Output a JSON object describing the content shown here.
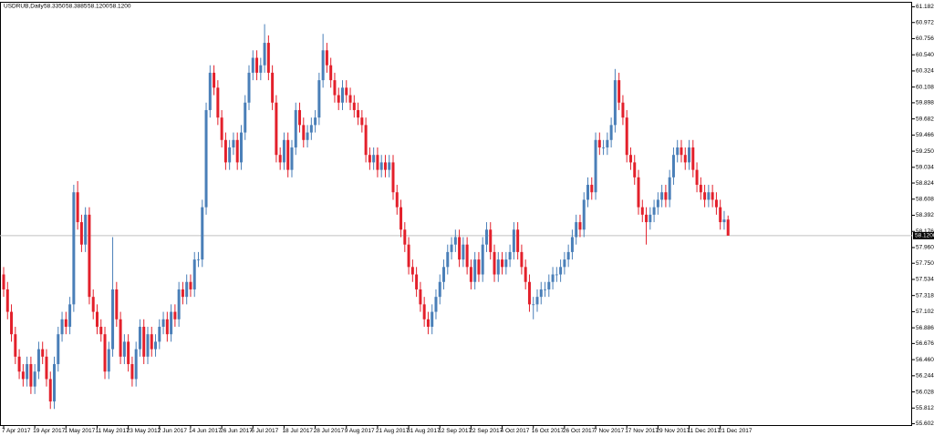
{
  "chart_data": {
    "type": "candlestick",
    "title": "USDRUB,Daily",
    "header_prices": [
      "58.3350",
      "58.3885",
      "58.1200",
      "58.1200"
    ],
    "up_color": "#4a7fb8",
    "down_color": "#e3202b",
    "current_price": {
      "value": 58.12,
      "label": "58.1200"
    },
    "ylim": [
      55.578,
      61.243
    ],
    "yticks": [
      {
        "value": 61.182,
        "label": "61.1820"
      },
      {
        "value": 60.972,
        "label": "60.9720"
      },
      {
        "value": 60.756,
        "label": "60.7560"
      },
      {
        "value": 60.54,
        "label": "60.5400"
      },
      {
        "value": 60.324,
        "label": "60.3240"
      },
      {
        "value": 60.108,
        "label": "60.1080"
      },
      {
        "value": 59.898,
        "label": "59.8980"
      },
      {
        "value": 59.682,
        "label": "59.6820"
      },
      {
        "value": 59.466,
        "label": "59.4660"
      },
      {
        "value": 59.25,
        "label": "59.2500"
      },
      {
        "value": 59.034,
        "label": "59.0340"
      },
      {
        "value": 58.824,
        "label": "58.8240"
      },
      {
        "value": 58.608,
        "label": "58.6080"
      },
      {
        "value": 58.392,
        "label": "58.3920"
      },
      {
        "value": 58.176,
        "label": "58.1760"
      },
      {
        "value": 57.96,
        "label": "57.9600"
      },
      {
        "value": 57.75,
        "label": "57.7500"
      },
      {
        "value": 57.534,
        "label": "57.5340"
      },
      {
        "value": 57.318,
        "label": "57.3180"
      },
      {
        "value": 57.102,
        "label": "57.1020"
      },
      {
        "value": 56.886,
        "label": "56.8860"
      },
      {
        "value": 56.676,
        "label": "56.6760"
      },
      {
        "value": 56.46,
        "label": "56.4600"
      },
      {
        "value": 56.244,
        "label": "56.2440"
      },
      {
        "value": 56.028,
        "label": "56.0280"
      },
      {
        "value": 55.812,
        "label": "55.8120"
      },
      {
        "value": 55.602,
        "label": "55.6020"
      }
    ],
    "categories": [
      "7 Apr 2017",
      null,
      null,
      null,
      null,
      null,
      null,
      null,
      "19 Apr 2017",
      null,
      null,
      null,
      null,
      null,
      null,
      null,
      "1 May 2017",
      null,
      null,
      null,
      null,
      null,
      null,
      null,
      "11 May 2017",
      null,
      null,
      null,
      null,
      null,
      null,
      null,
      "23 May 2017",
      null,
      null,
      null,
      null,
      null,
      null,
      null,
      "2 Jun 2017",
      null,
      null,
      null,
      null,
      null,
      null,
      null,
      "14 Jun 2017",
      null,
      null,
      null,
      null,
      null,
      null,
      null,
      "26 Jun 2017",
      null,
      null,
      null,
      null,
      null,
      null,
      null,
      "6 Jul 2017",
      null,
      null,
      null,
      null,
      null,
      null,
      null,
      "18 Jul 2017",
      null,
      null,
      null,
      null,
      null,
      null,
      null,
      "28 Jul 2017",
      null,
      null,
      null,
      null,
      null,
      null,
      null,
      "9 Aug 2017",
      null,
      null,
      null,
      null,
      null,
      null,
      null,
      "21 Aug 2017",
      null,
      null,
      null,
      null,
      null,
      null,
      null,
      "31 Aug 2017",
      null,
      null,
      null,
      null,
      null,
      null,
      null,
      "12 Sep 2017",
      null,
      null,
      null,
      null,
      null,
      null,
      null,
      "22 Sep 2017",
      null,
      null,
      null,
      null,
      null,
      null,
      null,
      "4 Oct 2017",
      null,
      null,
      null,
      null,
      null,
      null,
      null,
      "16 Oct 2017",
      null,
      null,
      null,
      null,
      null,
      null,
      null,
      "26 Oct 2017",
      null,
      null,
      null,
      null,
      null,
      null,
      null,
      "7 Nov 2017",
      null,
      null,
      null,
      null,
      null,
      null,
      null,
      "17 Nov 2017",
      null,
      null,
      null,
      null,
      null,
      null,
      null,
      "29 Nov 2017",
      null,
      null,
      null,
      null,
      null,
      null,
      null,
      "11 Dec 2017",
      null,
      null,
      null,
      null,
      null,
      null,
      null,
      "21 Dec 2017",
      null,
      null
    ],
    "ohlc": [
      [
        57.6,
        57.7,
        57.3,
        57.4
      ],
      [
        57.4,
        57.5,
        57.0,
        57.1
      ],
      [
        57.1,
        57.2,
        56.7,
        56.8
      ],
      [
        56.8,
        56.9,
        56.4,
        56.5
      ],
      [
        56.5,
        56.6,
        56.2,
        56.3
      ],
      [
        56.3,
        56.4,
        56.1,
        56.2
      ],
      [
        56.2,
        56.5,
        56.1,
        56.4
      ],
      [
        56.4,
        56.5,
        56.0,
        56.1
      ],
      [
        56.1,
        56.4,
        56.0,
        56.3
      ],
      [
        56.3,
        56.7,
        56.2,
        56.6
      ],
      [
        56.6,
        56.7,
        56.4,
        56.5
      ],
      [
        56.5,
        56.6,
        56.1,
        56.2
      ],
      [
        56.2,
        56.3,
        55.8,
        55.9
      ],
      [
        55.9,
        56.5,
        55.8,
        56.4
      ],
      [
        56.4,
        56.9,
        56.3,
        56.8
      ],
      [
        56.8,
        57.1,
        56.7,
        57.0
      ],
      [
        57.0,
        57.1,
        56.8,
        56.9
      ],
      [
        56.9,
        57.3,
        56.8,
        57.2
      ],
      [
        57.2,
        58.8,
        57.1,
        58.7
      ],
      [
        58.7,
        58.85,
        58.2,
        58.3
      ],
      [
        58.3,
        58.4,
        57.9,
        58.0
      ],
      [
        58.0,
        58.5,
        57.9,
        58.4
      ],
      [
        58.4,
        58.5,
        57.2,
        57.3
      ],
      [
        57.3,
        57.4,
        57.0,
        57.1
      ],
      [
        57.1,
        57.2,
        56.8,
        56.9
      ],
      [
        56.9,
        57.0,
        56.7,
        56.8
      ],
      [
        56.8,
        56.9,
        56.2,
        56.3
      ],
      [
        56.3,
        56.7,
        56.2,
        56.6
      ],
      [
        56.6,
        58.1,
        56.5,
        57.4
      ],
      [
        57.4,
        57.5,
        56.9,
        57.0
      ],
      [
        57.0,
        57.1,
        56.4,
        56.5
      ],
      [
        56.5,
        56.8,
        56.4,
        56.7
      ],
      [
        56.7,
        56.8,
        56.3,
        56.4
      ],
      [
        56.4,
        56.5,
        56.1,
        56.2
      ],
      [
        56.2,
        56.7,
        56.1,
        56.6
      ],
      [
        56.6,
        57.0,
        56.5,
        56.9
      ],
      [
        56.9,
        57.0,
        56.4,
        56.5
      ],
      [
        56.5,
        56.9,
        56.4,
        56.8
      ],
      [
        56.8,
        56.9,
        56.5,
        56.6
      ],
      [
        56.6,
        56.8,
        56.5,
        56.7
      ],
      [
        56.7,
        57.0,
        56.6,
        56.9
      ],
      [
        56.9,
        57.1,
        56.8,
        57.0
      ],
      [
        57.0,
        57.1,
        56.7,
        56.8
      ],
      [
        56.8,
        57.2,
        56.7,
        57.1
      ],
      [
        57.1,
        57.2,
        56.9,
        57.0
      ],
      [
        57.0,
        57.5,
        56.9,
        57.4
      ],
      [
        57.4,
        57.5,
        57.2,
        57.3
      ],
      [
        57.3,
        57.6,
        57.2,
        57.5
      ],
      [
        57.5,
        57.6,
        57.3,
        57.4
      ],
      [
        57.4,
        57.9,
        57.3,
        57.8
      ],
      [
        57.8,
        57.9,
        57.7,
        57.8
      ],
      [
        57.8,
        58.6,
        57.7,
        58.5
      ],
      [
        58.5,
        59.9,
        58.4,
        59.8
      ],
      [
        59.8,
        60.4,
        59.7,
        60.3
      ],
      [
        60.3,
        60.4,
        60.0,
        60.1
      ],
      [
        60.1,
        60.2,
        59.6,
        59.7
      ],
      [
        59.7,
        59.8,
        59.3,
        59.4
      ],
      [
        59.4,
        59.5,
        59.0,
        59.1
      ],
      [
        59.1,
        59.4,
        59.0,
        59.3
      ],
      [
        59.3,
        59.5,
        59.2,
        59.4
      ],
      [
        59.4,
        59.5,
        59.0,
        59.1
      ],
      [
        59.1,
        59.6,
        59.0,
        59.5
      ],
      [
        59.5,
        60.0,
        59.4,
        59.9
      ],
      [
        59.9,
        60.4,
        59.8,
        60.3
      ],
      [
        60.3,
        60.6,
        60.2,
        60.5
      ],
      [
        60.5,
        60.6,
        60.2,
        60.3
      ],
      [
        60.3,
        60.5,
        60.2,
        60.4
      ],
      [
        60.4,
        60.95,
        60.3,
        60.7
      ],
      [
        60.7,
        60.8,
        60.2,
        60.3
      ],
      [
        60.3,
        60.4,
        59.8,
        59.9
      ],
      [
        59.9,
        60.0,
        59.1,
        59.2
      ],
      [
        59.2,
        59.3,
        59.0,
        59.1
      ],
      [
        59.1,
        59.5,
        59.0,
        59.4
      ],
      [
        59.4,
        59.5,
        58.9,
        59.0
      ],
      [
        59.0,
        59.4,
        58.9,
        59.3
      ],
      [
        59.3,
        59.9,
        59.2,
        59.8
      ],
      [
        59.8,
        59.9,
        59.5,
        59.6
      ],
      [
        59.6,
        59.7,
        59.3,
        59.4
      ],
      [
        59.4,
        59.6,
        59.3,
        59.5
      ],
      [
        59.5,
        59.7,
        59.4,
        59.6
      ],
      [
        59.6,
        59.8,
        59.5,
        59.7
      ],
      [
        59.7,
        60.3,
        59.6,
        60.2
      ],
      [
        60.2,
        60.82,
        60.1,
        60.6
      ],
      [
        60.6,
        60.7,
        60.3,
        60.4
      ],
      [
        60.4,
        60.5,
        60.1,
        60.2
      ],
      [
        60.2,
        60.3,
        59.9,
        60.0
      ],
      [
        60.0,
        60.1,
        59.8,
        59.9
      ],
      [
        59.9,
        60.2,
        59.8,
        60.1
      ],
      [
        60.1,
        60.2,
        59.9,
        60.0
      ],
      [
        60.0,
        60.1,
        59.8,
        59.9
      ],
      [
        59.9,
        60.0,
        59.7,
        59.8
      ],
      [
        59.8,
        59.9,
        59.6,
        59.7
      ],
      [
        59.7,
        59.8,
        59.5,
        59.6
      ],
      [
        59.6,
        59.7,
        59.1,
        59.2
      ],
      [
        59.2,
        59.3,
        59.0,
        59.1
      ],
      [
        59.1,
        59.3,
        59.0,
        59.2
      ],
      [
        59.2,
        59.3,
        58.9,
        59.0
      ],
      [
        59.0,
        59.2,
        58.9,
        59.1
      ],
      [
        59.1,
        59.2,
        58.9,
        59.0
      ],
      [
        59.0,
        59.2,
        58.9,
        59.1
      ],
      [
        59.1,
        59.2,
        58.6,
        58.7
      ],
      [
        58.7,
        58.8,
        58.4,
        58.5
      ],
      [
        58.5,
        58.6,
        58.1,
        58.2
      ],
      [
        58.2,
        58.3,
        57.9,
        58.0
      ],
      [
        58.0,
        58.1,
        57.6,
        57.7
      ],
      [
        57.7,
        57.8,
        57.5,
        57.6
      ],
      [
        57.6,
        57.7,
        57.3,
        57.4
      ],
      [
        57.4,
        57.5,
        57.1,
        57.2
      ],
      [
        57.2,
        57.3,
        56.9,
        57.0
      ],
      [
        57.0,
        57.1,
        56.8,
        56.9
      ],
      [
        56.9,
        57.2,
        56.8,
        57.1
      ],
      [
        57.1,
        57.4,
        57.0,
        57.3
      ],
      [
        57.3,
        57.6,
        57.2,
        57.5
      ],
      [
        57.5,
        57.8,
        57.4,
        57.7
      ],
      [
        57.7,
        58.0,
        57.6,
        57.9
      ],
      [
        57.9,
        58.1,
        57.8,
        58.0
      ],
      [
        58.0,
        58.2,
        57.9,
        58.1
      ],
      [
        58.1,
        58.2,
        57.7,
        57.8
      ],
      [
        57.8,
        58.1,
        57.7,
        58.0
      ],
      [
        58.0,
        58.1,
        57.6,
        57.7
      ],
      [
        57.7,
        57.8,
        57.4,
        57.5
      ],
      [
        57.5,
        57.9,
        57.4,
        57.8
      ],
      [
        57.8,
        57.9,
        57.5,
        57.6
      ],
      [
        57.6,
        58.1,
        57.5,
        58.0
      ],
      [
        58.0,
        58.3,
        57.9,
        58.2
      ],
      [
        58.2,
        58.3,
        57.8,
        57.9
      ],
      [
        57.9,
        58.0,
        57.5,
        57.6
      ],
      [
        57.6,
        57.9,
        57.5,
        57.8
      ],
      [
        57.8,
        57.9,
        57.6,
        57.7
      ],
      [
        57.7,
        57.9,
        57.6,
        57.8
      ],
      [
        57.8,
        58.0,
        57.7,
        57.9
      ],
      [
        57.9,
        58.3,
        57.8,
        58.2
      ],
      [
        58.2,
        58.3,
        57.8,
        57.9
      ],
      [
        57.9,
        58.0,
        57.6,
        57.7
      ],
      [
        57.7,
        57.8,
        57.4,
        57.5
      ],
      [
        57.5,
        57.6,
        57.1,
        57.2
      ],
      [
        57.2,
        57.3,
        57.0,
        57.2
      ],
      [
        57.2,
        57.4,
        57.1,
        57.3
      ],
      [
        57.3,
        57.5,
        57.2,
        57.4
      ],
      [
        57.4,
        57.5,
        57.3,
        57.4
      ],
      [
        57.4,
        57.6,
        57.3,
        57.5
      ],
      [
        57.5,
        57.7,
        57.4,
        57.6
      ],
      [
        57.6,
        57.7,
        57.5,
        57.6
      ],
      [
        57.6,
        57.8,
        57.5,
        57.7
      ],
      [
        57.7,
        57.9,
        57.6,
        57.8
      ],
      [
        57.8,
        58.0,
        57.7,
        57.9
      ],
      [
        57.9,
        58.2,
        57.8,
        58.1
      ],
      [
        58.1,
        58.4,
        58.0,
        58.3
      ],
      [
        58.3,
        58.4,
        58.1,
        58.2
      ],
      [
        58.2,
        58.7,
        58.1,
        58.6
      ],
      [
        58.6,
        58.9,
        58.5,
        58.8
      ],
      [
        58.8,
        58.9,
        58.6,
        58.7
      ],
      [
        58.7,
        59.5,
        58.6,
        59.4
      ],
      [
        59.4,
        59.5,
        59.2,
        59.3
      ],
      [
        59.3,
        59.4,
        59.2,
        59.3
      ],
      [
        59.3,
        59.5,
        59.2,
        59.4
      ],
      [
        59.4,
        59.7,
        59.3,
        59.6
      ],
      [
        59.6,
        60.35,
        59.5,
        60.2
      ],
      [
        60.2,
        60.3,
        59.8,
        59.9
      ],
      [
        59.9,
        60.0,
        59.6,
        59.7
      ],
      [
        59.7,
        59.8,
        59.1,
        59.2
      ],
      [
        59.2,
        59.3,
        59.0,
        59.1
      ],
      [
        59.1,
        59.2,
        58.8,
        58.9
      ],
      [
        58.9,
        59.0,
        58.4,
        58.5
      ],
      [
        58.5,
        58.6,
        58.3,
        58.4
      ],
      [
        58.4,
        58.5,
        58.0,
        58.3
      ],
      [
        58.3,
        58.5,
        58.2,
        58.4
      ],
      [
        58.4,
        58.6,
        58.3,
        58.5
      ],
      [
        58.5,
        58.7,
        58.4,
        58.6
      ],
      [
        58.6,
        58.8,
        58.5,
        58.7
      ],
      [
        58.7,
        58.8,
        58.5,
        58.6
      ],
      [
        58.6,
        59.0,
        58.5,
        58.9
      ],
      [
        58.9,
        59.3,
        58.8,
        59.2
      ],
      [
        59.2,
        59.4,
        59.1,
        59.3
      ],
      [
        59.3,
        59.4,
        59.1,
        59.2
      ],
      [
        59.2,
        59.3,
        59.0,
        59.1
      ],
      [
        59.1,
        59.4,
        59.0,
        59.3
      ],
      [
        59.3,
        59.4,
        58.9,
        59.0
      ],
      [
        59.0,
        59.1,
        58.7,
        58.8
      ],
      [
        58.8,
        58.9,
        58.6,
        58.7
      ],
      [
        58.7,
        58.8,
        58.5,
        58.6
      ],
      [
        58.6,
        58.8,
        58.5,
        58.7
      ],
      [
        58.7,
        58.8,
        58.5,
        58.6
      ],
      [
        58.6,
        58.7,
        58.4,
        58.5
      ],
      [
        58.5,
        58.6,
        58.2,
        58.3
      ],
      [
        58.3,
        58.45,
        58.2,
        58.335
      ],
      [
        58.335,
        58.3885,
        58.12,
        58.12
      ]
    ]
  }
}
